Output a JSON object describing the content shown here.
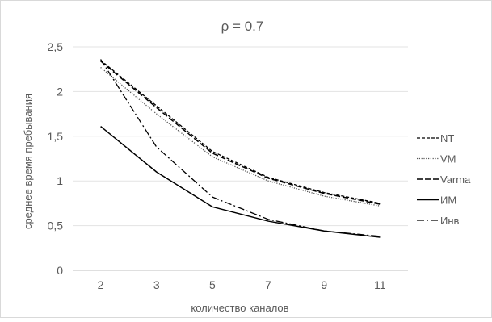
{
  "chart_data": {
    "type": "line",
    "title": "ρ = 0.7",
    "xlabel": "количество каналов",
    "ylabel": "среднее время пребывания",
    "categories": [
      "2",
      "3",
      "5",
      "7",
      "9",
      "11"
    ],
    "ylim": [
      0,
      2.5
    ],
    "yticks": [
      "0",
      "0,5",
      "1",
      "1,5",
      "2",
      "2,5"
    ],
    "ytick_values": [
      0,
      0.5,
      1,
      1.5,
      2,
      2.5
    ],
    "grid": "horizontal",
    "legend_position": "right",
    "series": [
      {
        "name": "NT",
        "values": [
          2.35,
          1.84,
          1.33,
          1.04,
          0.87,
          0.75
        ],
        "dash": "4 2",
        "width": 1.3,
        "color": "#000000"
      },
      {
        "name": "VM",
        "values": [
          2.27,
          1.75,
          1.27,
          1.0,
          0.83,
          0.72
        ],
        "dash": "1.2 1.6",
        "width": 1.3,
        "color": "#555555"
      },
      {
        "name": "Varma",
        "values": [
          2.34,
          1.82,
          1.31,
          1.03,
          0.86,
          0.74
        ],
        "dash": "7 3",
        "width": 1.5,
        "color": "#000000"
      },
      {
        "name": "ИМ",
        "values": [
          1.61,
          1.1,
          0.71,
          0.55,
          0.44,
          0.37
        ],
        "dash": "",
        "width": 1.5,
        "color": "#000000"
      },
      {
        "name": "Инв",
        "values": [
          2.36,
          1.38,
          0.82,
          0.57,
          0.44,
          0.38
        ],
        "dash": "9 3 2 3",
        "width": 1.3,
        "color": "#000000"
      }
    ]
  }
}
